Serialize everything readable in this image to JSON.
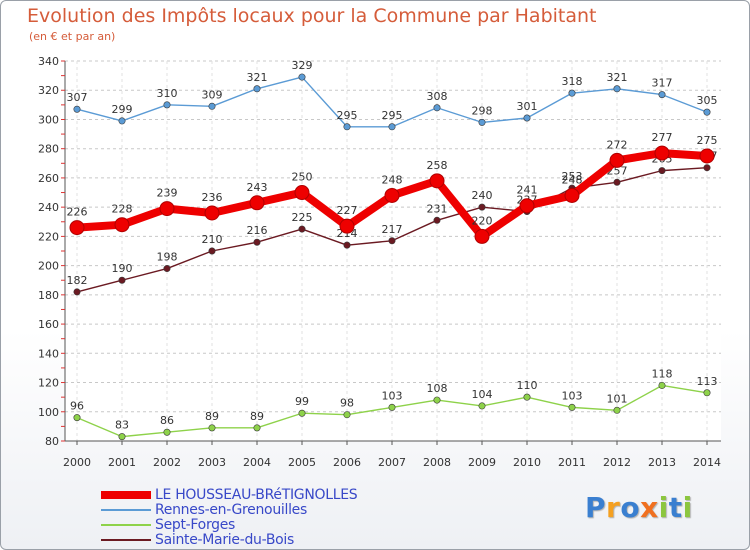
{
  "chart_data": {
    "type": "line",
    "title": "Evolution des Impôts locaux pour la Commune par Habitant",
    "subtitle": "(en € et par an)",
    "xlabel": "",
    "ylabel": "",
    "x": [
      "2000",
      "2001",
      "2002",
      "2003",
      "2004",
      "2005",
      "2006",
      "2007",
      "2008",
      "2009",
      "2010",
      "2011",
      "2012",
      "2013",
      "2014"
    ],
    "yticks": [
      80,
      100,
      120,
      140,
      160,
      180,
      200,
      220,
      240,
      260,
      280,
      300,
      320,
      340
    ],
    "ylim": [
      80,
      340
    ],
    "grid": "horizontal dashed",
    "series": [
      {
        "name": "Rennes-en-Grenouilles",
        "color": "#5b9bd5",
        "values": [
          307,
          299,
          310,
          309,
          321,
          329,
          295,
          295,
          308,
          298,
          301,
          318,
          321,
          317,
          305
        ]
      },
      {
        "name": "Sainte-Marie-du-Bois",
        "color": "#6b1a22",
        "values": [
          182,
          190,
          198,
          210,
          216,
          225,
          214,
          217,
          231,
          240,
          237,
          253,
          257,
          265,
          267
        ]
      },
      {
        "name": "LE HOUSSEAU-BRéTIGNOLLES",
        "color": "#ee0000",
        "values": [
          226,
          228,
          239,
          236,
          243,
          250,
          227,
          248,
          258,
          220,
          241,
          248,
          272,
          277,
          275
        ]
      },
      {
        "name": "Sept-Forges",
        "color": "#8ed24a",
        "values": [
          96,
          83,
          86,
          89,
          89,
          99,
          98,
          103,
          108,
          104,
          110,
          103,
          101,
          118,
          113
        ]
      }
    ]
  },
  "legend": {
    "placement": "bottom-left",
    "items": [
      {
        "label": "LE HOUSSEAU-BRéTIGNOLLES",
        "color": "#ee0000"
      },
      {
        "label": "Rennes-en-Grenouilles",
        "color": "#5b9bd5"
      },
      {
        "label": "Sept-Forges",
        "color": "#8ed24a"
      },
      {
        "label": "Sainte-Marie-du-Bois",
        "color": "#6b1a22"
      }
    ]
  },
  "logo": {
    "letters": [
      {
        "ch": "P",
        "color": "#3a7fd0"
      },
      {
        "ch": "r",
        "color": "#f5a020"
      },
      {
        "ch": "o",
        "color": "#3a7fd0"
      },
      {
        "ch": "x",
        "color": "#f07020"
      },
      {
        "ch": "i",
        "color": "#8cc63f"
      },
      {
        "ch": "t",
        "color": "#3a7fd0"
      },
      {
        "ch": "i",
        "color": "#8cc63f"
      }
    ]
  }
}
